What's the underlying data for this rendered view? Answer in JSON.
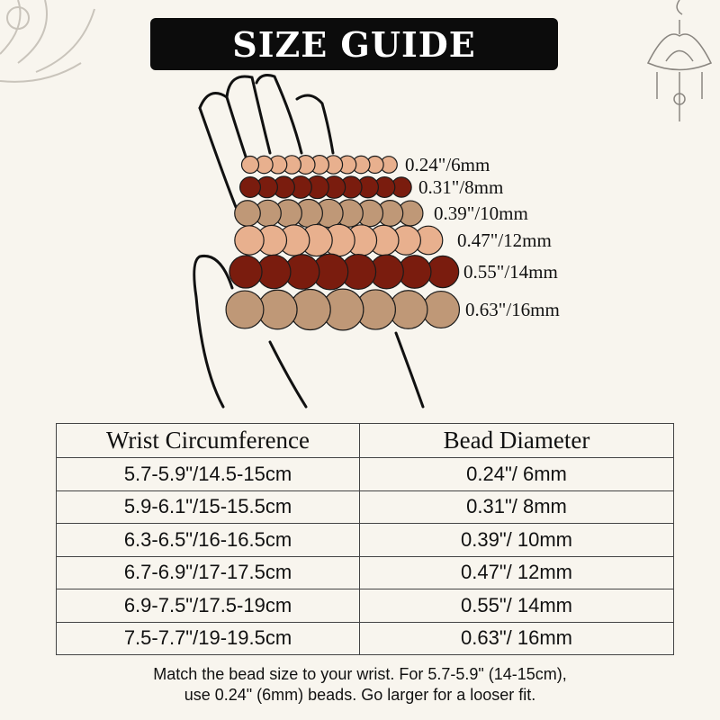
{
  "title": "SIZE GUIDE",
  "colors": {
    "background": "#f8f5ee",
    "peach": "#e8b08e",
    "maroon": "#7a1c0e",
    "tan": "#bf9877",
    "title_bg": "#0c0c0c"
  },
  "bracelets": [
    {
      "label": "0.24\"/6mm",
      "color": "peach"
    },
    {
      "label": "0.31\"/8mm",
      "color": "maroon"
    },
    {
      "label": "0.39\"/10mm",
      "color": "tan"
    },
    {
      "label": "0.47\"/12mm",
      "color": "peach"
    },
    {
      "label": "0.55\"/14mm",
      "color": "maroon"
    },
    {
      "label": "0.63\"/16mm",
      "color": "tan"
    }
  ],
  "table": {
    "headers": [
      "Wrist Circumference",
      "Bead Diameter"
    ],
    "rows": [
      [
        "5.7-5.9\"/14.5-15cm",
        "0.24\"/ 6mm"
      ],
      [
        "5.9-6.1\"/15-15.5cm",
        "0.31\"/ 8mm"
      ],
      [
        "6.3-6.5\"/16-16.5cm",
        "0.39\"/ 10mm"
      ],
      [
        "6.7-6.9\"/17-17.5cm",
        "0.47\"/ 12mm"
      ],
      [
        "6.9-7.5\"/17.5-19cm",
        "0.55\"/ 14mm"
      ],
      [
        "7.5-7.7\"/19-19.5cm",
        "0.63\"/ 16mm"
      ]
    ]
  },
  "note": {
    "line1": "Match the bead size to your wrist. For 5.7-5.9\" (14-15cm),",
    "line2": "use 0.24\" (6mm) beads. Go larger for a looser fit."
  }
}
